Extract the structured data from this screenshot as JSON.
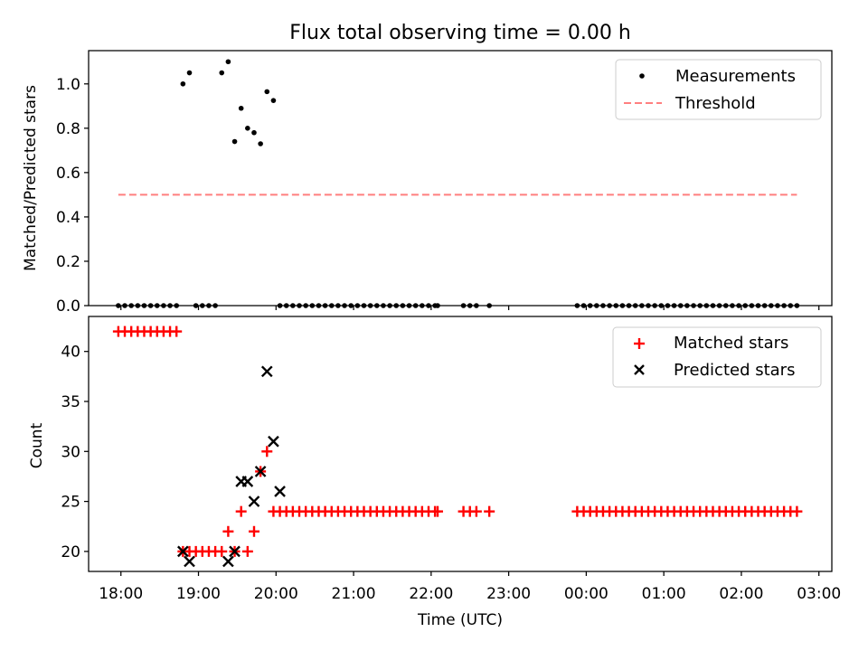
{
  "chart_data": [
    {
      "type": "scatter",
      "title": "Flux total observing time = 0.00 h",
      "xlabel": "",
      "ylabel": "Matched/Predicted stars",
      "xlim": [
        "17:35",
        "03:10"
      ],
      "ylim": [
        0,
        1.15
      ],
      "yticks": [
        0.0,
        0.2,
        0.4,
        0.6,
        0.8,
        1.0
      ],
      "ytick_labels": [
        "0.0",
        "0.2",
        "0.4",
        "0.6",
        "0.8",
        "1.0"
      ],
      "legend": {
        "position": "top-right",
        "entries": [
          "Measurements",
          "Threshold"
        ]
      },
      "series": [
        {
          "name": "Measurements",
          "marker": "dot",
          "color": "#000000",
          "x": [
            "17:58",
            "18:03",
            "18:08",
            "18:13",
            "18:18",
            "18:23",
            "18:28",
            "18:33",
            "18:38",
            "18:43",
            "18:48",
            "18:53",
            "18:58",
            "19:03",
            "19:08",
            "19:13",
            "19:18",
            "19:23",
            "19:28",
            "19:33",
            "19:38",
            "19:43",
            "19:48",
            "19:53",
            "19:58",
            "20:03",
            "20:08",
            "20:13",
            "20:18",
            "20:23",
            "20:28",
            "20:33",
            "20:38",
            "20:43",
            "20:48",
            "20:53",
            "20:58",
            "21:03",
            "21:08",
            "21:13",
            "21:18",
            "21:23",
            "21:28",
            "21:33",
            "21:38",
            "21:43",
            "21:48",
            "21:53",
            "21:58",
            "22:03",
            "22:05",
            "22:25",
            "22:30",
            "22:35",
            "22:45",
            "23:53",
            "23:58",
            "00:03",
            "00:08",
            "00:13",
            "00:18",
            "00:23",
            "00:28",
            "00:33",
            "00:38",
            "00:43",
            "00:48",
            "00:53",
            "00:58",
            "01:03",
            "01:08",
            "01:13",
            "01:18",
            "01:23",
            "01:28",
            "01:33",
            "01:38",
            "01:43",
            "01:48",
            "01:53",
            "01:58",
            "02:03",
            "02:08",
            "02:13",
            "02:18",
            "02:23",
            "02:28",
            "02:33",
            "02:38",
            "02:43"
          ],
          "y": [
            0,
            0,
            0,
            0,
            0,
            0,
            0,
            0,
            0,
            0,
            1.0,
            1.05,
            0,
            0,
            0,
            0,
            1.05,
            1.1,
            0.74,
            0.89,
            0.8,
            0.78,
            0.73,
            0.965,
            0.925,
            0,
            0,
            0,
            0,
            0,
            0,
            0,
            0,
            0,
            0,
            0,
            0,
            0,
            0,
            0,
            0,
            0,
            0,
            0,
            0,
            0,
            0,
            0,
            0,
            0,
            0,
            0,
            0,
            0,
            0,
            0,
            0,
            0,
            0,
            0,
            0,
            0,
            0,
            0,
            0,
            0,
            0,
            0,
            0,
            0,
            0,
            0,
            0,
            0,
            0,
            0,
            0,
            0,
            0,
            0,
            0,
            0,
            0,
            0,
            0,
            0,
            0,
            0,
            0,
            0
          ]
        },
        {
          "name": "Threshold",
          "type": "line",
          "style": "dashed",
          "color": "#ff7f7f",
          "x": [
            "17:58",
            "02:43"
          ],
          "y": [
            0.5,
            0.5
          ]
        }
      ]
    },
    {
      "type": "scatter",
      "title": "",
      "xlabel": "Time (UTC)",
      "ylabel": "Count",
      "xlim": [
        "17:35",
        "03:10"
      ],
      "ylim": [
        18,
        43.5
      ],
      "xticks": [
        "18:00",
        "19:00",
        "20:00",
        "21:00",
        "22:00",
        "23:00",
        "00:00",
        "01:00",
        "02:00",
        "03:00"
      ],
      "yticks": [
        20,
        25,
        30,
        35,
        40
      ],
      "legend": {
        "position": "top-right",
        "entries": [
          "Matched stars",
          "Predicted stars"
        ]
      },
      "series": [
        {
          "name": "Matched stars",
          "marker": "plus",
          "color": "#ff0000",
          "x": [
            "17:58",
            "18:03",
            "18:08",
            "18:13",
            "18:18",
            "18:23",
            "18:28",
            "18:33",
            "18:38",
            "18:43",
            "18:48",
            "18:53",
            "18:58",
            "19:03",
            "19:08",
            "19:13",
            "19:18",
            "19:23",
            "19:28",
            "19:33",
            "19:38",
            "19:43",
            "19:48",
            "19:53",
            "19:58",
            "20:03",
            "20:08",
            "20:13",
            "20:18",
            "20:23",
            "20:28",
            "20:33",
            "20:38",
            "20:43",
            "20:48",
            "20:53",
            "20:58",
            "21:03",
            "21:08",
            "21:13",
            "21:18",
            "21:23",
            "21:28",
            "21:33",
            "21:38",
            "21:43",
            "21:48",
            "21:53",
            "21:58",
            "22:03",
            "22:05",
            "22:25",
            "22:30",
            "22:35",
            "22:45",
            "23:53",
            "23:58",
            "00:03",
            "00:08",
            "00:13",
            "00:18",
            "00:23",
            "00:28",
            "00:33",
            "00:38",
            "00:43",
            "00:48",
            "00:53",
            "00:58",
            "01:03",
            "01:08",
            "01:13",
            "01:18",
            "01:23",
            "01:28",
            "01:33",
            "01:38",
            "01:43",
            "01:48",
            "01:53",
            "01:58",
            "02:03",
            "02:08",
            "02:13",
            "02:18",
            "02:23",
            "02:28",
            "02:33",
            "02:38",
            "02:43"
          ],
          "y": [
            42,
            42,
            42,
            42,
            42,
            42,
            42,
            42,
            42,
            42,
            20,
            20,
            20,
            20,
            20,
            20,
            20,
            22,
            20,
            24,
            20,
            22,
            28,
            30,
            24,
            24,
            24,
            24,
            24,
            24,
            24,
            24,
            24,
            24,
            24,
            24,
            24,
            24,
            24,
            24,
            24,
            24,
            24,
            24,
            24,
            24,
            24,
            24,
            24,
            24,
            24,
            24,
            24,
            24,
            24,
            24,
            24,
            24,
            24,
            24,
            24,
            24,
            24,
            24,
            24,
            24,
            24,
            24,
            24,
            24,
            24,
            24,
            24,
            24,
            24,
            24,
            24,
            24,
            24,
            24,
            24,
            24,
            24,
            24,
            24,
            24,
            24,
            24,
            24,
            24
          ]
        },
        {
          "name": "Predicted stars",
          "marker": "x",
          "color": "#000000",
          "x": [
            "18:48",
            "18:53",
            "19:23",
            "19:28",
            "19:33",
            "19:38",
            "19:43",
            "19:48",
            "19:53",
            "19:58",
            "20:03"
          ],
          "y": [
            20,
            19,
            19,
            20,
            27,
            27,
            25,
            28,
            38,
            31,
            26
          ]
        }
      ]
    }
  ]
}
